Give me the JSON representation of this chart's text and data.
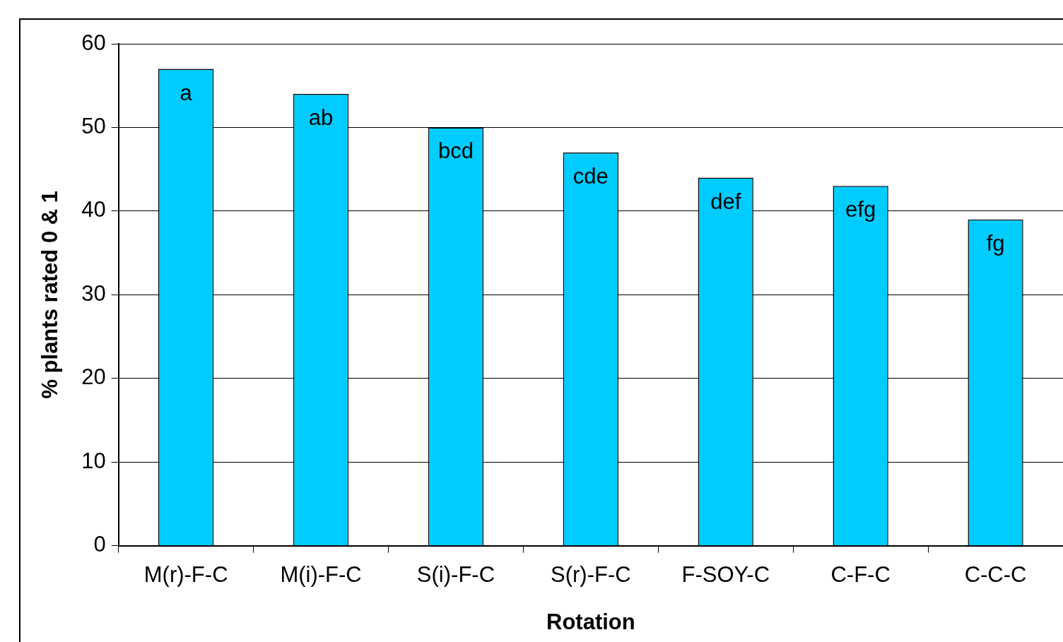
{
  "chart_data": {
    "type": "bar",
    "xlabel": "Rotation",
    "ylabel": "% plants rated 0 & 1",
    "categories": [
      "M(r)-F-C",
      "M(i)-F-C",
      "S(i)-F-C",
      "S(r)-F-C",
      "F-SOY-C",
      "C-F-C",
      "C-C-C"
    ],
    "values": [
      57,
      54,
      50,
      47,
      44,
      43,
      39
    ],
    "color": "#00ccff",
    "ylim": [
      0,
      60
    ],
    "yticks": [
      0,
      10,
      20,
      30,
      40,
      50,
      60
    ],
    "grid": "y",
    "legend": false,
    "annotations": [
      {
        "text": "a",
        "x": "M(r)-F-C",
        "y": 57
      },
      {
        "text": "ab",
        "x": "M(i)-F-C",
        "y": 54
      },
      {
        "text": "bcd",
        "x": "S(i)-F-C",
        "y": 50
      },
      {
        "text": "cde",
        "x": "S(r)-F-C",
        "y": 47
      },
      {
        "text": "def",
        "x": "F-SOY-C",
        "y": 44
      },
      {
        "text": "efg",
        "x": "C-F-C",
        "y": 43
      },
      {
        "text": "fg",
        "x": "C-C-C",
        "y": 39
      }
    ]
  }
}
